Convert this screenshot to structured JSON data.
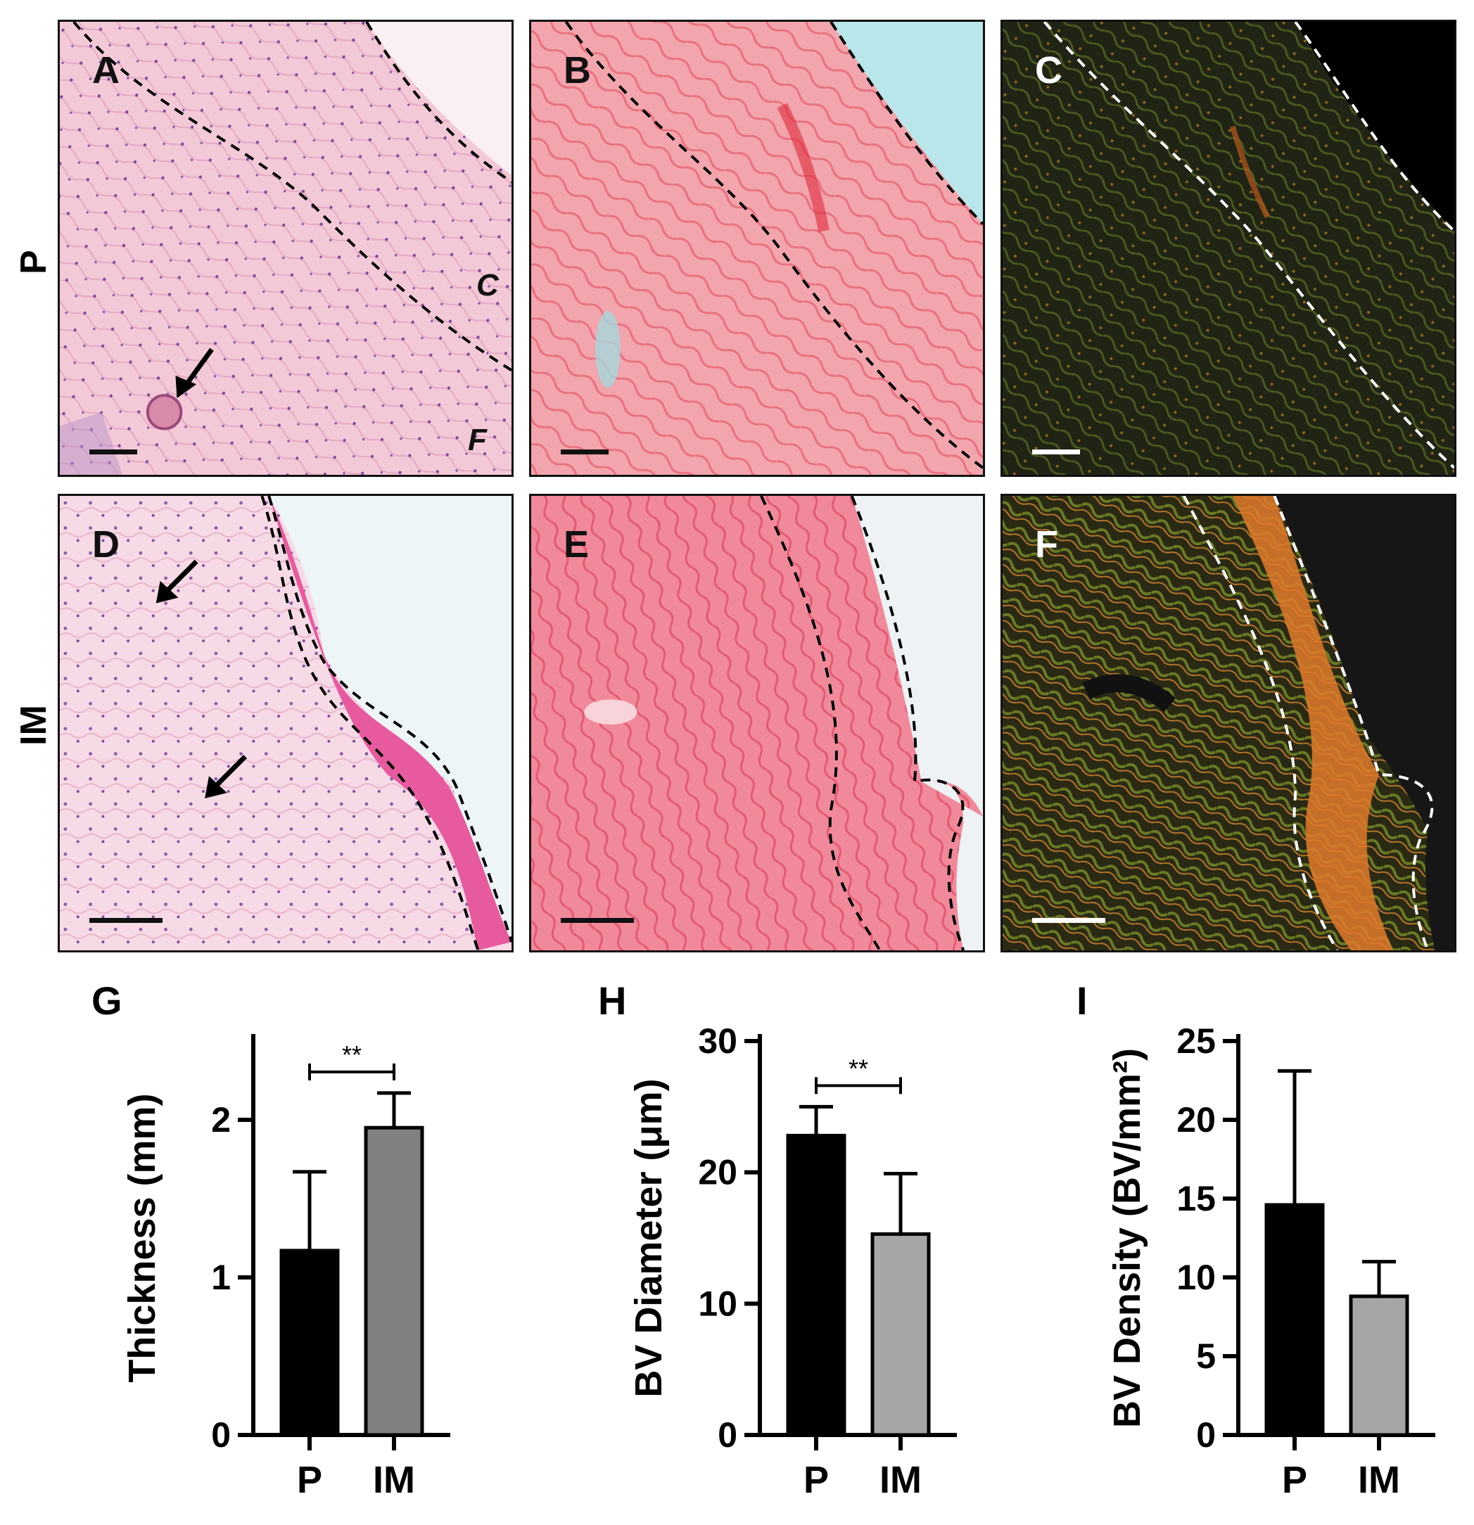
{
  "rows": [
    {
      "label": "P"
    },
    {
      "label": "IM"
    }
  ],
  "panels": [
    {
      "label": "A",
      "c_label": "C",
      "f_label": "F"
    },
    {
      "label": "B"
    },
    {
      "label": "C"
    },
    {
      "label": "D"
    },
    {
      "label": "E"
    },
    {
      "label": "F"
    }
  ],
  "colors": {
    "he_background": "#f3c6d6",
    "picro_background": "#f07e90",
    "polarized_background": "#1e1e12",
    "bar_P": "#000000",
    "bar_IM_G": "#808080",
    "bar_IM_HI": "#a6a6a6"
  },
  "chart_data": [
    {
      "panel": "G",
      "type": "bar",
      "categories": [
        "P",
        "IM"
      ],
      "values": [
        1.17,
        1.95
      ],
      "errors": [
        0.5,
        0.22
      ],
      "ylabel": "Thickness (mm)",
      "ylim": [
        0,
        2.5
      ],
      "yticks": [
        "0",
        "1",
        "2"
      ],
      "significance": {
        "pair": [
          "P",
          "IM"
        ],
        "label": "**"
      }
    },
    {
      "panel": "H",
      "type": "bar",
      "categories": [
        "P",
        "IM"
      ],
      "values": [
        22.8,
        15.3
      ],
      "errors": [
        2.2,
        4.6
      ],
      "ylabel": "BV Diameter (μm)",
      "ylim": [
        0,
        30
      ],
      "yticks": [
        "0",
        "10",
        "20",
        "30"
      ],
      "significance": {
        "pair": [
          "P",
          "IM"
        ],
        "label": "**"
      }
    },
    {
      "panel": "I",
      "type": "bar",
      "categories": [
        "P",
        "IM"
      ],
      "values": [
        14.6,
        8.8
      ],
      "errors": [
        8.5,
        2.2
      ],
      "ylabel": "BV Density (BV/mm²)",
      "ylim": [
        0,
        25
      ],
      "yticks": [
        "0",
        "5",
        "10",
        "15",
        "20",
        "25"
      ]
    }
  ]
}
